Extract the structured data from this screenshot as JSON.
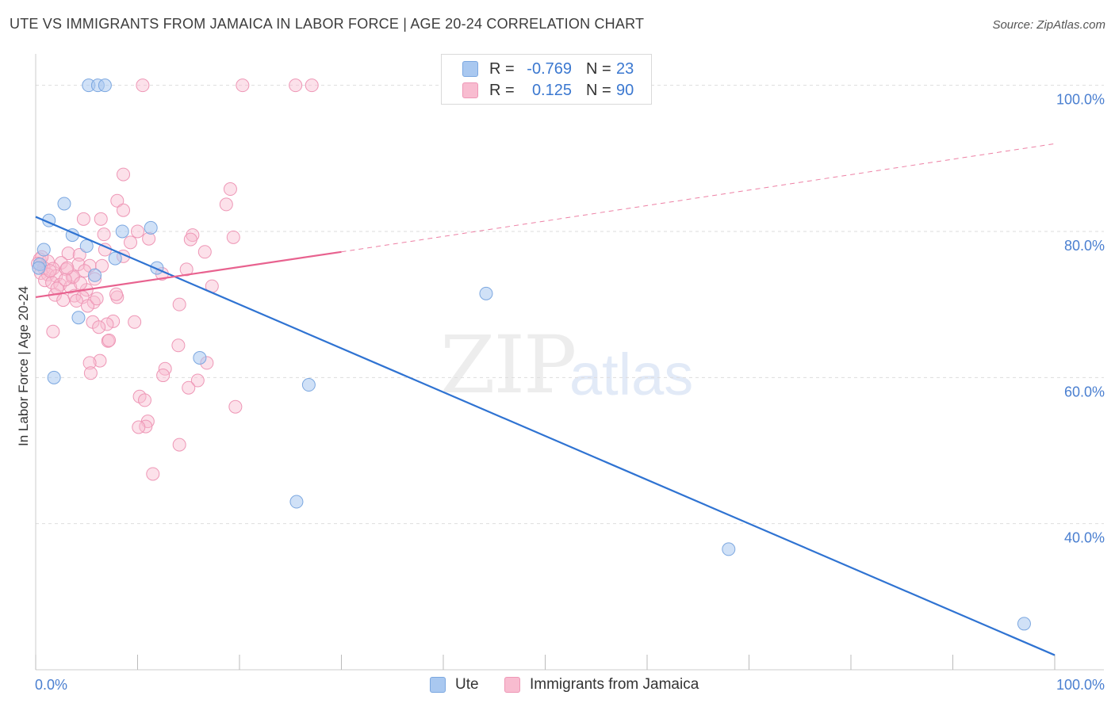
{
  "title": "UTE VS IMMIGRANTS FROM JAMAICA IN LABOR FORCE | AGE 20-24 CORRELATION CHART",
  "source": "Source: ZipAtlas.com",
  "watermark": {
    "zip": "ZIP",
    "atlas": "atlas"
  },
  "legend": {
    "rows": [
      {
        "r_label": "R =",
        "r_value": "-0.769",
        "n_label": "N =",
        "n_value": "23"
      },
      {
        "r_label": "R =",
        "r_value": "0.125",
        "n_label": "N =",
        "n_value": "90"
      }
    ]
  },
  "bottom_legend": {
    "ute": "Ute",
    "jamaica": "Immigrants from Jamaica"
  },
  "colors": {
    "ute_fill": "#a9c8f0",
    "ute_stroke": "#7ba7e0",
    "ute_line": "#2f73d2",
    "jam_fill": "#f8bcd0",
    "jam_stroke": "#ee97b6",
    "jam_line": "#e8628f",
    "grid": "#dddddd",
    "tick_text": "#4a7fd0"
  },
  "chart_data": {
    "type": "scatter",
    "title": "UTE VS IMMIGRANTS FROM JAMAICA IN LABOR FORCE | AGE 20-24 CORRELATION CHART",
    "xlabel": "",
    "ylabel": "In Labor Force | Age 20-24",
    "xlim": [
      0,
      100
    ],
    "ylim": [
      20,
      103
    ],
    "x_tick_labels": [
      "0.0%",
      "100.0%"
    ],
    "y_ticks": [
      40,
      60,
      80,
      100
    ],
    "y_tick_labels": [
      "40.0%",
      "60.0%",
      "80.0%",
      "100.0%"
    ],
    "grid": true,
    "legend_position": "top-center",
    "series": [
      {
        "name": "Ute",
        "r": -0.769,
        "n": 23,
        "points": [
          [
            5.2,
            100
          ],
          [
            6.1,
            100
          ],
          [
            6.8,
            100
          ],
          [
            2.8,
            83.8
          ],
          [
            1.3,
            81.5
          ],
          [
            3.6,
            79.5
          ],
          [
            11.3,
            80.5
          ],
          [
            8.5,
            80.0
          ],
          [
            0.8,
            77.5
          ],
          [
            5.0,
            78.0
          ],
          [
            7.8,
            76.3
          ],
          [
            11.9,
            75.0
          ],
          [
            5.8,
            74.0
          ],
          [
            0.4,
            75.5
          ],
          [
            4.2,
            68.2
          ],
          [
            1.8,
            60.0
          ],
          [
            16.1,
            62.7
          ],
          [
            26.8,
            59.0
          ],
          [
            44.2,
            71.5
          ],
          [
            25.6,
            43.0
          ],
          [
            68.0,
            36.5
          ],
          [
            97.0,
            26.3
          ],
          [
            0.3,
            75.0
          ]
        ],
        "trend": {
          "x": [
            0,
            100
          ],
          "y": [
            82.0,
            22.0
          ],
          "style": "solid"
        }
      },
      {
        "name": "Immigrants from Jamaica",
        "r": 0.125,
        "n": 90,
        "points": [
          [
            10.5,
            100
          ],
          [
            20.3,
            100
          ],
          [
            25.5,
            100
          ],
          [
            27.1,
            100
          ],
          [
            8.6,
            87.8
          ],
          [
            19.1,
            85.8
          ],
          [
            18.7,
            83.7
          ],
          [
            8.0,
            84.2
          ],
          [
            8.6,
            82.9
          ],
          [
            6.4,
            81.7
          ],
          [
            4.7,
            81.7
          ],
          [
            10.0,
            80.0
          ],
          [
            6.7,
            79.6
          ],
          [
            15.4,
            79.5
          ],
          [
            19.4,
            79.2
          ],
          [
            11.1,
            79.0
          ],
          [
            15.2,
            78.9
          ],
          [
            6.8,
            77.5
          ],
          [
            16.6,
            77.2
          ],
          [
            3.2,
            77.0
          ],
          [
            4.3,
            76.8
          ],
          [
            8.6,
            76.6
          ],
          [
            0.4,
            76.2
          ],
          [
            1.2,
            75.9
          ],
          [
            2.5,
            75.7
          ],
          [
            4.2,
            75.5
          ],
          [
            5.3,
            75.3
          ],
          [
            6.5,
            75.3
          ],
          [
            0.8,
            75.0
          ],
          [
            1.7,
            74.9
          ],
          [
            3.0,
            74.8
          ],
          [
            4.8,
            74.6
          ],
          [
            14.8,
            74.8
          ],
          [
            0.5,
            74.3
          ],
          [
            1.2,
            74.1
          ],
          [
            2.0,
            73.9
          ],
          [
            3.6,
            73.7
          ],
          [
            5.8,
            73.5
          ],
          [
            0.9,
            73.3
          ],
          [
            1.6,
            73.0
          ],
          [
            2.4,
            72.7
          ],
          [
            3.4,
            72.4
          ],
          [
            5.0,
            72.0
          ],
          [
            1.9,
            71.3
          ],
          [
            3.8,
            71.2
          ],
          [
            4.6,
            71.0
          ],
          [
            8.0,
            71.0
          ],
          [
            2.7,
            70.6
          ],
          [
            4.0,
            70.5
          ],
          [
            5.7,
            70.3
          ],
          [
            14.1,
            70.0
          ],
          [
            5.1,
            69.8
          ],
          [
            1.7,
            66.3
          ],
          [
            5.6,
            67.6
          ],
          [
            7.6,
            67.7
          ],
          [
            9.7,
            67.6
          ],
          [
            7.0,
            67.3
          ],
          [
            6.2,
            66.9
          ],
          [
            7.1,
            65.0
          ],
          [
            7.2,
            65.1
          ],
          [
            14.0,
            64.4
          ],
          [
            6.3,
            62.3
          ],
          [
            5.3,
            62.0
          ],
          [
            16.8,
            62.0
          ],
          [
            12.7,
            61.2
          ],
          [
            5.4,
            60.6
          ],
          [
            12.5,
            60.3
          ],
          [
            15.9,
            59.6
          ],
          [
            15.0,
            58.6
          ],
          [
            19.6,
            56.0
          ],
          [
            10.2,
            57.4
          ],
          [
            10.7,
            56.9
          ],
          [
            11.0,
            54.0
          ],
          [
            10.8,
            53.3
          ],
          [
            10.1,
            53.2
          ],
          [
            14.1,
            50.8
          ],
          [
            11.5,
            46.8
          ],
          [
            3.7,
            73.8
          ],
          [
            2.1,
            72.2
          ],
          [
            6.0,
            70.8
          ],
          [
            0.6,
            76.5
          ],
          [
            1.4,
            74.6
          ],
          [
            2.9,
            73.4
          ],
          [
            4.4,
            72.9
          ],
          [
            7.9,
            71.4
          ],
          [
            9.3,
            78.5
          ],
          [
            12.4,
            74.2
          ],
          [
            3.1,
            75.0
          ],
          [
            17.3,
            72.5
          ],
          [
            0.2,
            75.6
          ]
        ],
        "trend": {
          "x": [
            0,
            30
          ],
          "y": [
            71.0,
            77.2
          ],
          "style": "solid",
          "extension": {
            "x": [
              30,
              100
            ],
            "y": [
              77.2,
              92.0
            ],
            "style": "dashed"
          }
        }
      }
    ]
  }
}
